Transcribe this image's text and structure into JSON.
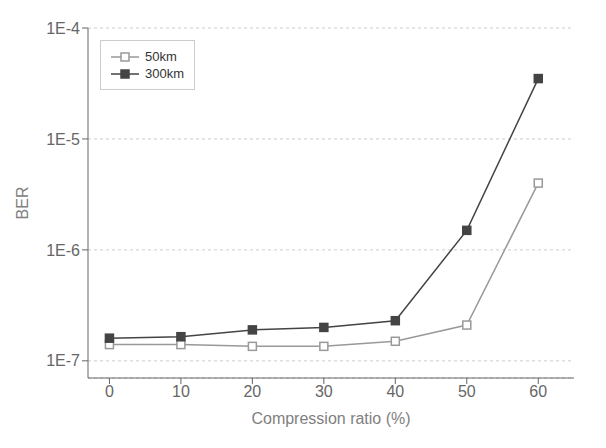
{
  "chart_data": {
    "type": "line",
    "x": [
      0,
      10,
      20,
      30,
      40,
      50,
      60
    ],
    "series": [
      {
        "name": "50km",
        "color": "#999999",
        "marker": "open square",
        "values": [
          1.4e-07,
          1.4e-07,
          1.35e-07,
          1.35e-07,
          1.5e-07,
          2.1e-07,
          4e-06
        ]
      },
      {
        "name": "300km",
        "color": "#444444",
        "marker": "square",
        "values": [
          1.6e-07,
          1.65e-07,
          1.9e-07,
          2e-07,
          2.3e-07,
          1.5e-06,
          3.5e-05
        ]
      }
    ],
    "xlabel": "Compression ratio (%)",
    "ylabel": "BER",
    "xlim": [
      -3,
      65
    ],
    "xticks": [
      0,
      10,
      20,
      30,
      40,
      50,
      60
    ],
    "ylim": [
      7e-08,
      0.0001
    ],
    "yticks": [
      {
        "value": 1e-07,
        "label": "1E-7"
      },
      {
        "value": 1e-06,
        "label": "1E-6"
      },
      {
        "value": 1e-05,
        "label": "1E-5"
      },
      {
        "value": 0.0001,
        "label": "1E-4"
      }
    ],
    "log": "y",
    "grid": true,
    "legend": "upper left"
  }
}
